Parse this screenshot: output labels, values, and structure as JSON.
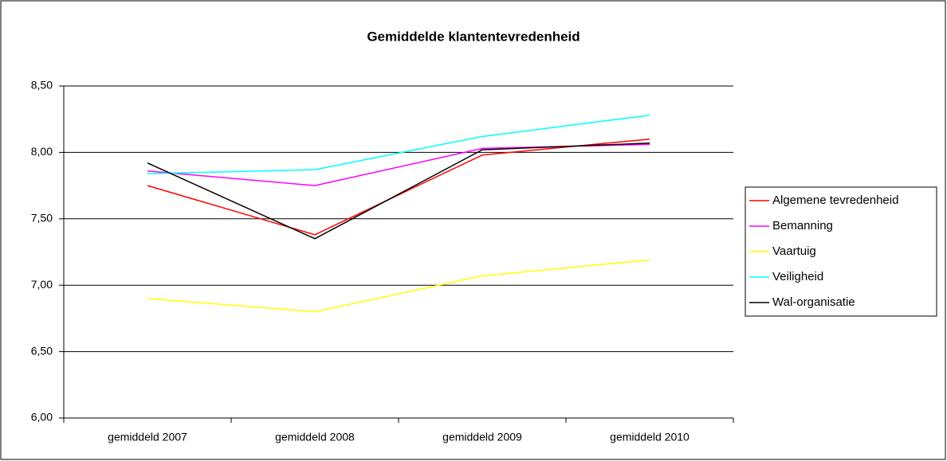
{
  "chart_data": {
    "type": "line",
    "title": "Gemiddelde klantentevredenheid",
    "categories": [
      "gemiddeld 2007",
      "gemiddeld 2008",
      "gemiddeld 2009",
      "gemiddeld 2010"
    ],
    "series": [
      {
        "name": "Algemene tevredenheid",
        "color": "#ff0000",
        "values": [
          7.75,
          7.38,
          7.98,
          8.1
        ]
      },
      {
        "name": "Bemanning",
        "color": "#ff00ff",
        "values": [
          7.86,
          7.75,
          8.03,
          8.06
        ]
      },
      {
        "name": "Vaartuig",
        "color": "#ffff00",
        "values": [
          6.9,
          6.8,
          7.07,
          7.19
        ]
      },
      {
        "name": "Veiligheid",
        "color": "#00ffff",
        "values": [
          7.84,
          7.87,
          8.12,
          8.28
        ]
      },
      {
        "name": "Wal-organisatie",
        "color": "#000000",
        "values": [
          7.92,
          7.35,
          8.02,
          8.07
        ]
      }
    ],
    "ylim": [
      6,
      8.5
    ],
    "yticks": [
      {
        "value": 6,
        "label": "6,00"
      },
      {
        "value": 6.5,
        "label": "6,50"
      },
      {
        "value": 7,
        "label": "7,00"
      },
      {
        "value": 7.5,
        "label": "7,50"
      },
      {
        "value": 8,
        "label": "8,00"
      },
      {
        "value": 8.5,
        "label": "8,50"
      }
    ],
    "grid": true,
    "legend": "right"
  }
}
